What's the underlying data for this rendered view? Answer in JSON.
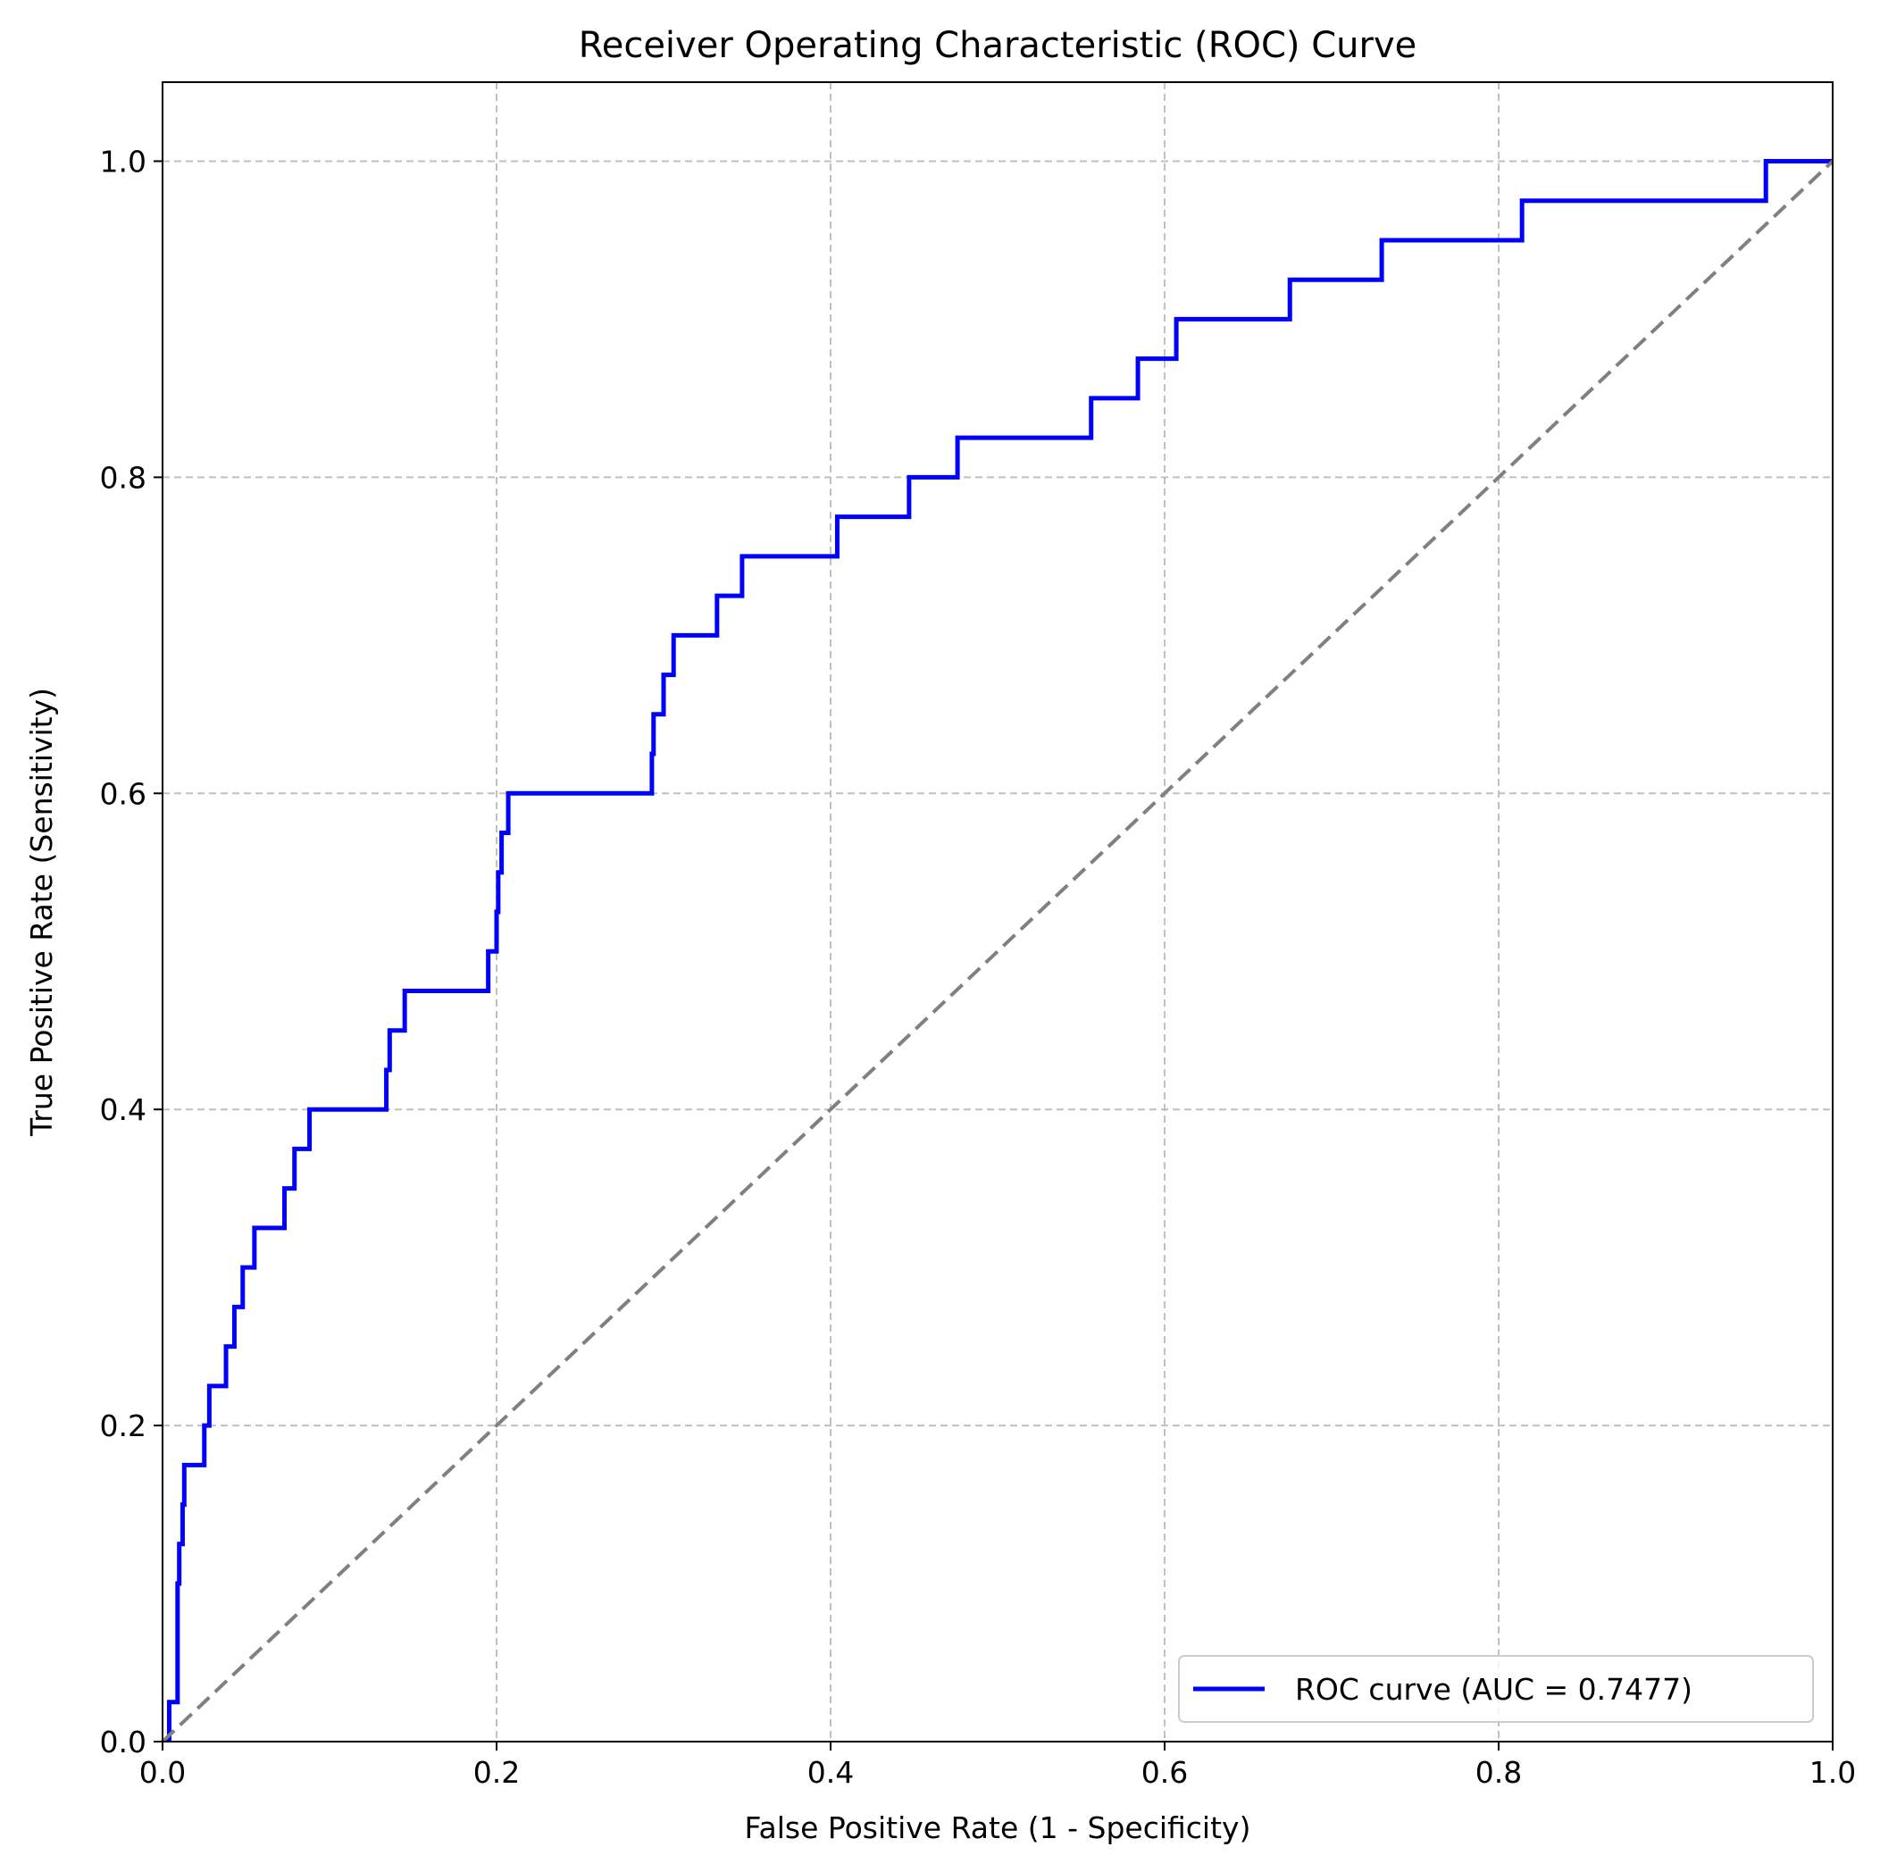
{
  "chart_data": {
    "type": "line",
    "title": "Receiver Operating Characteristic (ROC) Curve",
    "xlabel": "False Positive Rate (1 - Specificity)",
    "ylabel": "True Positive Rate (Sensitivity)",
    "xlim": [
      0.0,
      1.0
    ],
    "ylim": [
      0.0,
      1.05
    ],
    "xticks": [
      0.0,
      0.2,
      0.4,
      0.6,
      0.8,
      1.0
    ],
    "yticks": [
      0.0,
      0.2,
      0.4,
      0.6,
      0.8,
      1.0
    ],
    "xtick_labels": [
      "0.0",
      "0.2",
      "0.4",
      "0.6",
      "0.8",
      "1.0"
    ],
    "ytick_labels": [
      "0.0",
      "0.2",
      "0.4",
      "0.6",
      "0.8",
      "1.0"
    ],
    "grid": true,
    "grid_style": "dashed",
    "legend_position": "lower right",
    "series": [
      {
        "name": "ROC curve (AUC = 0.7477)",
        "color": "#0000ff",
        "style": "solid",
        "x": [
          0.0,
          0.004,
          0.004,
          0.009,
          0.009,
          0.01,
          0.01,
          0.012,
          0.012,
          0.013,
          0.013,
          0.025,
          0.025,
          0.028,
          0.028,
          0.038,
          0.038,
          0.043,
          0.043,
          0.048,
          0.048,
          0.055,
          0.055,
          0.073,
          0.073,
          0.079,
          0.079,
          0.088,
          0.088,
          0.134,
          0.134,
          0.136,
          0.136,
          0.145,
          0.145,
          0.195,
          0.195,
          0.2,
          0.2,
          0.201,
          0.201,
          0.203,
          0.203,
          0.207,
          0.207,
          0.293,
          0.293,
          0.294,
          0.294,
          0.3,
          0.3,
          0.306,
          0.306,
          0.332,
          0.332,
          0.347,
          0.347,
          0.404,
          0.404,
          0.447,
          0.447,
          0.476,
          0.476,
          0.556,
          0.556,
          0.584,
          0.584,
          0.607,
          0.607,
          0.675,
          0.675,
          0.73,
          0.73,
          0.814,
          0.814,
          0.96,
          0.96,
          1.0
        ],
        "y": [
          0.0,
          0.0,
          0.025,
          0.025,
          0.1,
          0.1,
          0.125,
          0.125,
          0.15,
          0.15,
          0.175,
          0.175,
          0.2,
          0.2,
          0.225,
          0.225,
          0.25,
          0.25,
          0.275,
          0.275,
          0.3,
          0.3,
          0.325,
          0.325,
          0.35,
          0.35,
          0.375,
          0.375,
          0.4,
          0.4,
          0.425,
          0.425,
          0.45,
          0.45,
          0.475,
          0.475,
          0.5,
          0.5,
          0.525,
          0.525,
          0.55,
          0.55,
          0.575,
          0.575,
          0.6,
          0.6,
          0.625,
          0.625,
          0.65,
          0.65,
          0.675,
          0.675,
          0.7,
          0.7,
          0.725,
          0.725,
          0.75,
          0.75,
          0.775,
          0.775,
          0.8,
          0.8,
          0.825,
          0.825,
          0.85,
          0.85,
          0.875,
          0.875,
          0.9,
          0.9,
          0.925,
          0.925,
          0.95,
          0.95,
          0.975,
          0.975,
          1.0,
          1.0
        ]
      },
      {
        "name": "",
        "color": "#808080",
        "style": "dashed",
        "x": [
          0.0,
          1.0
        ],
        "y": [
          0.0,
          1.0
        ]
      }
    ]
  },
  "colors": {
    "background": "#ffffff",
    "grid": "#c0c0c0",
    "axis": "#000000",
    "legend_border": "#cccccc"
  }
}
